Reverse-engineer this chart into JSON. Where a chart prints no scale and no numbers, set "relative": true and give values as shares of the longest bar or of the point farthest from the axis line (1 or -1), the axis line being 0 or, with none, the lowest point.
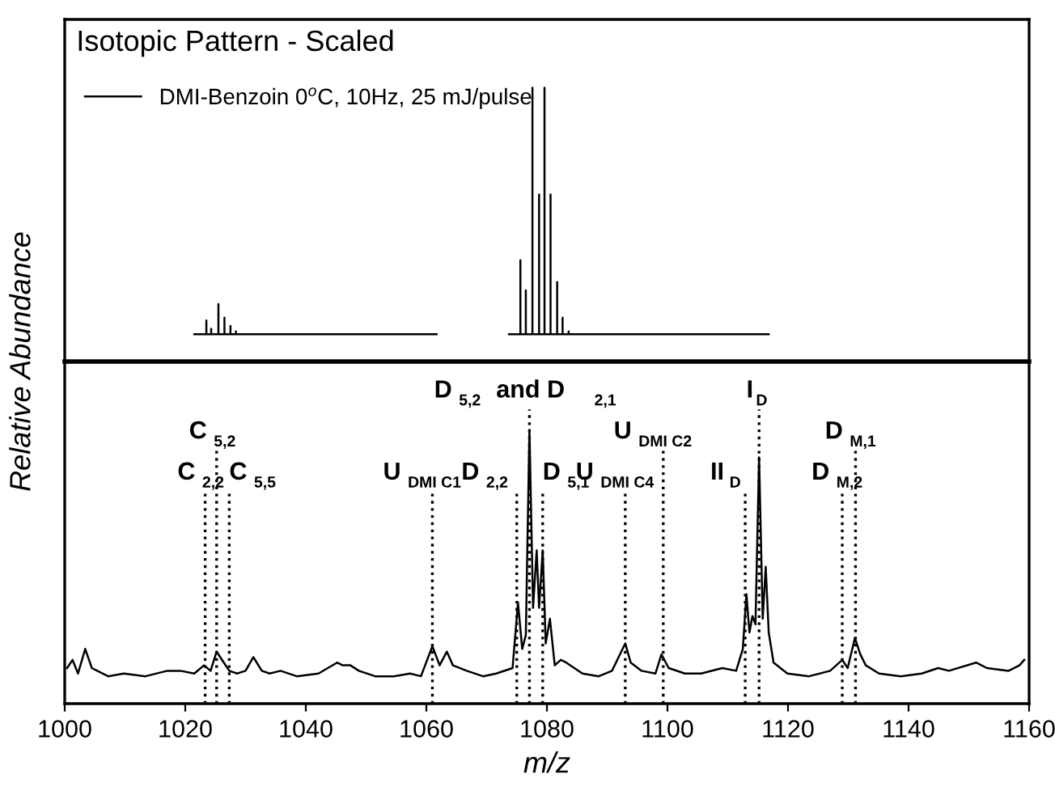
{
  "chart_data": [
    {
      "type": "line",
      "title": "Isotopic Pattern - Scaled",
      "ylabel": "Relative Abundance",
      "relative": true,
      "xlim": [
        1000,
        1160
      ],
      "tick_labels": false,
      "legend": "top left",
      "grid": false,
      "series": [
        {
          "name": "DMI-Benzoin 0$^{o}$C, 10Hz, 25 mJ/pulse",
          "color": "#000000",
          "x": [
            1021.5,
            1023.5,
            1023.5,
            1023.5,
            1024.3,
            1024.3,
            1024.3,
            1025.5,
            1025.5,
            1025.5,
            1026.5,
            1026.5,
            1026.5,
            1027.5,
            1027.5,
            1027.5,
            1028.4,
            1028.4,
            1028.4,
            1061.7,
            1067,
            1073.7,
            1075.6,
            1075.6,
            1075.6,
            1076.5,
            1076.5,
            1076.5,
            1077.6,
            1077.6,
            1077.6,
            1078.7,
            1078.7,
            1078.7,
            1079.6,
            1079.6,
            1079.6,
            1080.6,
            1080.6,
            1080.6,
            1081.7,
            1081.7,
            1081.7,
            1082.6,
            1082.6,
            1082.6,
            1083.6,
            1083.6,
            1083.6,
            1116.8
          ],
          "values": [
            0.1,
            0.1,
            0.15,
            0.1,
            0.1,
            0.12,
            0.1,
            0.1,
            0.21,
            0.1,
            0.1,
            0.16,
            0.1,
            0.1,
            0.13,
            0.1,
            0.1,
            0.11,
            0.1,
            0.1,
            null,
            0.1,
            0.1,
            0.37,
            0.1,
            0.1,
            0.26,
            0.1,
            0.1,
            1.0,
            0.1,
            0.1,
            0.61,
            0.1,
            0.1,
            1.0,
            0.1,
            0.1,
            0.61,
            0.1,
            0.1,
            0.29,
            0.1,
            0.1,
            0.16,
            0.1,
            0.1,
            0.11,
            0.1,
            0.1
          ]
        }
      ]
    },
    {
      "type": "line",
      "xlabel": "m/z",
      "relative": true,
      "xlim": [
        1000,
        1160
      ],
      "xticks": [
        1000,
        1020,
        1040,
        1060,
        1080,
        1100,
        1120,
        1140,
        1160
      ],
      "tick_labels": "x",
      "grid": false,
      "series": [
        {
          "color": "#000000",
          "x": [
            1000.4,
            1001.3,
            1002.2,
            1003.4,
            1004.5,
            1005.4,
            1007.2,
            1009.8,
            1013.4,
            1017.0,
            1019.2,
            1021.5,
            1023.1,
            1024.2,
            1025.2,
            1026.4,
            1027.3,
            1028.6,
            1030.0,
            1031.3,
            1032.7,
            1034.0,
            1035.8,
            1038.5,
            1042.1,
            1045.2,
            1046.1,
            1047.4,
            1048.8,
            1051.5,
            1054.6,
            1057.3,
            1059.1,
            1061.0,
            1062.2,
            1063.4,
            1064.4,
            1066.7,
            1069.4,
            1071.6,
            1074.3,
            1075.2,
            1075.9,
            1076.5,
            1077.1,
            1077.7,
            1078.3,
            1078.7,
            1079.3,
            1079.8,
            1080.5,
            1081.3,
            1082.3,
            1083.2,
            1085.9,
            1088.6,
            1090.8,
            1093.0,
            1093.9,
            1095.7,
            1098.0,
            1099.0,
            1100.2,
            1102.9,
            1105.6,
            1109.1,
            1111.4,
            1112.5,
            1113.1,
            1113.6,
            1114.1,
            1114.6,
            1115.2,
            1115.8,
            1116.3,
            1116.8,
            1117.6,
            1119.9,
            1123.5,
            1127.0,
            1129.0,
            1129.9,
            1131.1,
            1132.0,
            1132.9,
            1135.1,
            1138.7,
            1142.2,
            1144.9,
            1146.7,
            1151.2,
            1153.0,
            1156.6,
            1158.4,
            1159.2
          ],
          "values": [
            0.13,
            0.16,
            0.11,
            0.2,
            0.13,
            0.12,
            0.1,
            0.11,
            0.1,
            0.12,
            0.12,
            0.11,
            0.14,
            0.12,
            0.19,
            0.15,
            0.12,
            0.11,
            0.12,
            0.17,
            0.12,
            0.11,
            0.12,
            0.1,
            0.11,
            0.15,
            0.14,
            0.14,
            0.12,
            0.1,
            0.1,
            0.11,
            0.1,
            0.21,
            0.14,
            0.19,
            0.14,
            0.12,
            0.1,
            0.11,
            0.13,
            0.37,
            0.2,
            0.25,
            1.0,
            0.35,
            0.56,
            0.35,
            0.56,
            0.22,
            0.31,
            0.14,
            0.16,
            0.15,
            0.11,
            0.1,
            0.12,
            0.22,
            0.15,
            0.12,
            0.11,
            0.18,
            0.13,
            0.11,
            0.11,
            0.13,
            0.12,
            0.2,
            0.4,
            0.26,
            0.32,
            0.29,
            0.9,
            0.31,
            0.5,
            0.26,
            0.15,
            0.11,
            0.1,
            0.12,
            0.16,
            0.13,
            0.24,
            0.18,
            0.14,
            0.11,
            0.1,
            0.11,
            0.13,
            0.12,
            0.15,
            0.13,
            0.12,
            0.14,
            0.16
          ]
        }
      ],
      "ref_lines": [
        {
          "axis": "x",
          "value": 1023.3,
          "label": "C$_{2,2}$",
          "line_style": "dotted"
        },
        {
          "axis": "x",
          "value": 1025.2,
          "label": "C$_{5,2}$",
          "line_style": "dotted"
        },
        {
          "axis": "x",
          "value": 1027.3,
          "label": "C$_{5,5}$",
          "line_style": "dotted"
        },
        {
          "axis": "x",
          "value": 1061.0,
          "label": "U$_{DMI C1}$",
          "line_style": "dotted"
        },
        {
          "axis": "x",
          "value": 1075.0,
          "label": "D$_{2,2}$",
          "line_style": "dotted"
        },
        {
          "axis": "x",
          "value": 1077.1,
          "label": "D$_{5,2}$ and D$_{2,1}$",
          "line_style": "dotted"
        },
        {
          "axis": "x",
          "value": 1079.3,
          "label": "D$_{5,1}$",
          "line_style": "dotted"
        },
        {
          "axis": "x",
          "value": 1093.0,
          "label": "U$_{DMI C4}$",
          "line_style": "dotted"
        },
        {
          "axis": "x",
          "value": 1099.3,
          "label": "U$_{DMI C2}$",
          "line_style": "dotted"
        },
        {
          "axis": "x",
          "value": 1112.9,
          "label": "II$_{D}$",
          "line_style": "dotted"
        },
        {
          "axis": "x",
          "value": 1115.2,
          "label": "I$_{D}$",
          "line_style": "dotted"
        },
        {
          "axis": "x",
          "value": 1129.0,
          "label": "D$_{M,2}$",
          "line_style": "dotted"
        },
        {
          "axis": "x",
          "value": 1131.2,
          "label": "D$_{M,1}$",
          "line_style": "dotted"
        }
      ]
    }
  ]
}
